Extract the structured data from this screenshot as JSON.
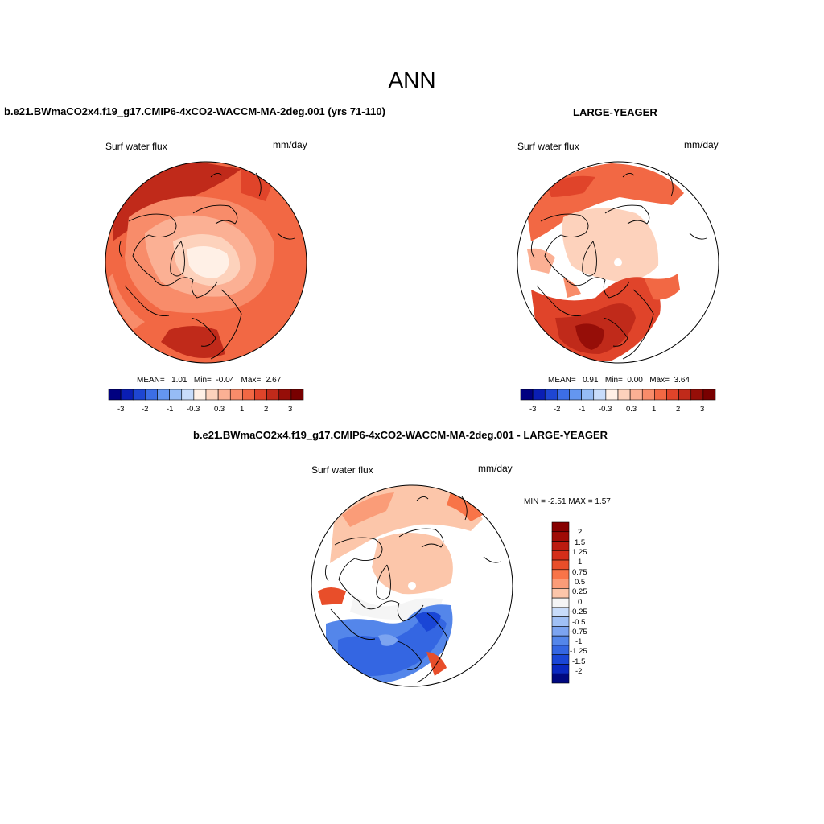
{
  "page": {
    "title": "ANN"
  },
  "panels": [
    {
      "id": "test",
      "case_title": "b.e21.BWmaCO2x4.f19_g17.CMIP6-4xCO2-WACCM-MA-2deg.001 (yrs 71-110)",
      "variable": "Surf water flux",
      "units": "mm/day",
      "stats": {
        "mean_label": "MEAN=",
        "mean": "1.01",
        "min_label": "Min=",
        "min": "-0.04",
        "max_label": "Max=",
        "max": "2.67"
      },
      "colorbar_ticks": [
        "-3",
        "-2",
        "-1",
        "-0.3",
        "0.3",
        "1",
        "2",
        "3"
      ]
    },
    {
      "id": "control",
      "case_title": "LARGE-YEAGER",
      "variable": "Surf water flux",
      "units": "mm/day",
      "stats": {
        "mean_label": "MEAN=",
        "mean": "0.91",
        "min_label": "Min=",
        "min": "0.00",
        "max_label": "Max=",
        "max": "3.64"
      },
      "colorbar_ticks": [
        "-3",
        "-2",
        "-1",
        "-0.3",
        "0.3",
        "1",
        "2",
        "3"
      ]
    },
    {
      "id": "difference",
      "case_title": "b.e21.BWmaCO2x4.f19_g17.CMIP6-4xCO2-WACCM-MA-2deg.001 - LARGE-YEAGER",
      "variable": "Surf water flux",
      "units": "mm/day",
      "stats_text": "MIN =  -2.51 MAX =   1.57",
      "colorbar_ticks": [
        "2",
        "1.5",
        "1.25",
        "1",
        "0.75",
        "0.5",
        "0.25",
        "0",
        "-0.25",
        "-0.5",
        "-0.75",
        "-1",
        "-1.25",
        "-1.5",
        "-2"
      ]
    }
  ],
  "colors": {
    "abs_scale": [
      "#000080",
      "#0a1eb4",
      "#1e46d2",
      "#3c6ee6",
      "#6496f0",
      "#96bcf5",
      "#c8dcfa",
      "#fff0e6",
      "#fdd2bc",
      "#fbb094",
      "#f88c6a",
      "#f26844",
      "#e0442a",
      "#c02a1a",
      "#960e08",
      "#780000"
    ],
    "diff_scale": [
      "#870000",
      "#a00c06",
      "#bc1c10",
      "#d42e1a",
      "#e84e2a",
      "#f87448",
      "#fa9c78",
      "#fcc6aa",
      "#f5f5f5",
      "#c8dcfa",
      "#a0c0f5",
      "#7ca4f0",
      "#5486ea",
      "#3466e2",
      "#1a46d6",
      "#0a28c0",
      "#000880"
    ]
  }
}
